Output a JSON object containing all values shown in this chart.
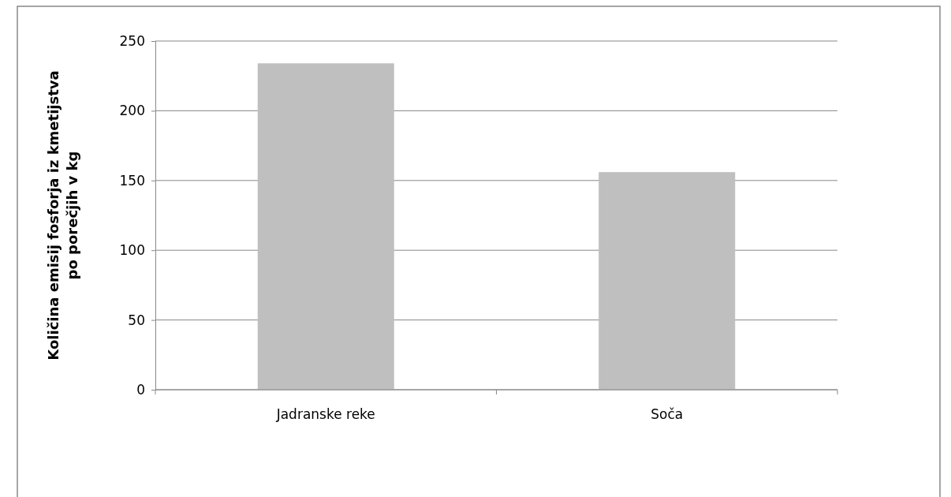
{
  "chart_data": {
    "type": "bar",
    "ylabel": "Količina emisij fosforja iz kmetijstva po porečjih v kg",
    "categories": [
      "Jadranske reke",
      "Soča"
    ],
    "values": [
      234,
      156
    ],
    "color": "#bfbfbf",
    "ylim": [
      0,
      250
    ],
    "yticks": [
      0,
      50,
      100,
      150,
      200,
      250
    ],
    "grid": "y"
  }
}
